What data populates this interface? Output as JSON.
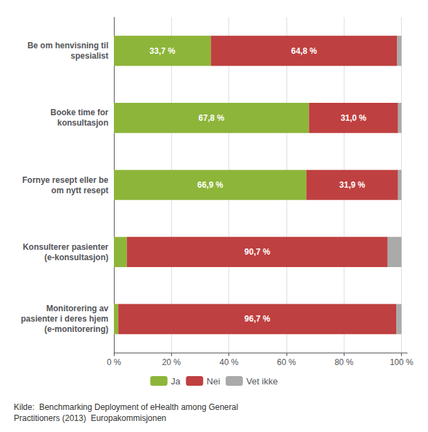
{
  "chart_data": {
    "type": "bar",
    "orientation": "horizontal",
    "stacked": true,
    "categories": [
      "Be om henvisning til\nspesialist",
      "Booke time for\nkonsultasjon",
      "Fornye resept eller be\nom nytt resept",
      "Konsulterer pasienter\n(e-konsultasjon)",
      "Monitorering av\npasienter i deres hjem\n(e-monitorering)"
    ],
    "series": [
      {
        "name": "Ja",
        "color": "#8db53a",
        "values": [
          33.7,
          67.8,
          66.9,
          4.5,
          1.5
        ],
        "value_labels": [
          "33,7 %",
          "67,8 %",
          "66,9 %",
          null,
          null
        ]
      },
      {
        "name": "Nei",
        "color": "#bf4040",
        "values": [
          64.8,
          31.0,
          31.9,
          90.7,
          96.7
        ],
        "value_labels": [
          "64,8 %",
          "31,0 %",
          "31,9 %",
          "90,7 %",
          "96,7 %"
        ]
      },
      {
        "name": "Vet ikke",
        "color": "#aaaaaa",
        "values": [
          1.5,
          1.2,
          1.2,
          4.8,
          1.8
        ]
      }
    ],
    "xlim": [
      0,
      102
    ],
    "xticks": [
      {
        "value": 0,
        "label": "0 %"
      },
      {
        "value": 20,
        "label": "20 %"
      },
      {
        "value": 40,
        "label": "40 %"
      },
      {
        "value": 60,
        "label": "60 %"
      },
      {
        "value": 80,
        "label": "80 %"
      },
      {
        "value": 100,
        "label": "100 %"
      }
    ],
    "grid": true,
    "legend": "bottom",
    "data_labels": true,
    "annotations": [
      "Kilde:  Benchmarking Deployment of eHealth among General\nPractitioners (2013)  Europakommisjonen"
    ]
  }
}
